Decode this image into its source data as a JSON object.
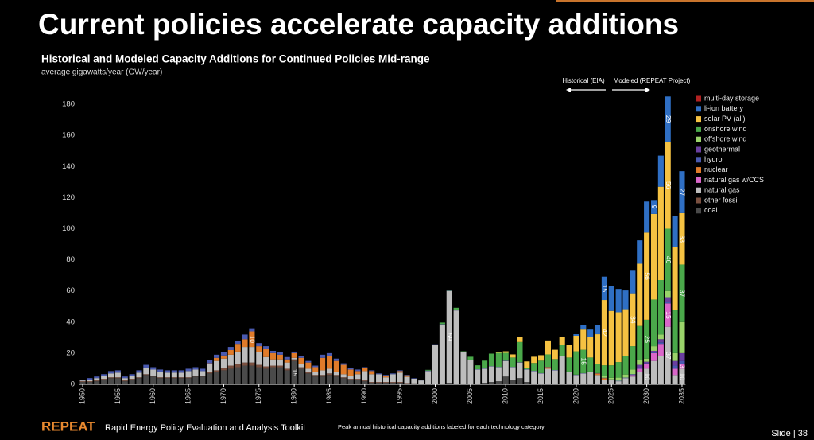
{
  "header": {
    "title": "Current policies accelerate capacity additions"
  },
  "footer": {
    "brand": "REPEAT",
    "tagline": "Rapid Energy Policy Evaluation and Analysis Toolkit",
    "note": "Peak annual historical capacity additions labeled for each technology category",
    "slide": "Slide | 38"
  },
  "chart_data": {
    "type": "bar",
    "stacked": true,
    "title": "Historical and Modeled Capacity Additions for Continued Policies Mid-range",
    "subtitle": "average gigawatts/year (GW/year)",
    "annotations": [
      "Historical (EIA)",
      "Modeled (REPEAT Project)"
    ],
    "xlim": [
      1949.5,
      2035.5
    ],
    "xticks": [
      1950,
      1955,
      1960,
      1965,
      1970,
      1975,
      1980,
      1985,
      1990,
      1995,
      2000,
      2005,
      2010,
      2015,
      2020,
      2025,
      2030,
      2035
    ],
    "ylim": [
      0,
      185
    ],
    "yticks": [
      0,
      20,
      40,
      60,
      80,
      100,
      120,
      140,
      160,
      180
    ],
    "x": [
      1950,
      1951,
      1952,
      1953,
      1954,
      1955,
      1956,
      1957,
      1958,
      1959,
      1960,
      1961,
      1962,
      1963,
      1964,
      1965,
      1966,
      1967,
      1968,
      1969,
      1970,
      1971,
      1972,
      1973,
      1974,
      1975,
      1976,
      1977,
      1978,
      1979,
      1980,
      1981,
      1982,
      1983,
      1984,
      1985,
      1986,
      1987,
      1988,
      1989,
      1990,
      1991,
      1992,
      1993,
      1994,
      1995,
      1996,
      1997,
      1998,
      1999,
      2000,
      2001,
      2002,
      2003,
      2004,
      2005,
      2006,
      2007,
      2008,
      2009,
      2010,
      2011,
      2012,
      2013,
      2014,
      2015,
      2016,
      2017,
      2018,
      2019,
      2020,
      2021,
      2022,
      2023,
      2024,
      2025,
      2026,
      2027,
      2028,
      2029,
      2030,
      2031,
      2032,
      2033,
      2034,
      2035
    ],
    "series": [
      {
        "name": "coal",
        "color": "#4a4a4a",
        "values": [
          1.5,
          1.5,
          2,
          3,
          4,
          4,
          2,
          3,
          4,
          6,
          5,
          4,
          4,
          4,
          4,
          4,
          5,
          5,
          7,
          8,
          9,
          10,
          11,
          12,
          12,
          11,
          10,
          11,
          11,
          9,
          15,
          10,
          7,
          5,
          5,
          6,
          5,
          4,
          3,
          3,
          2,
          1,
          1,
          1,
          1,
          1,
          0.5,
          0.3,
          0.2,
          0.2,
          0.5,
          0.5,
          1,
          0.5,
          0.5,
          0.5,
          0.5,
          1,
          1.5,
          2,
          5,
          3,
          4,
          1.5,
          0.5,
          0,
          0,
          0,
          0,
          0,
          0,
          0,
          0,
          0,
          0,
          0,
          0,
          0,
          0,
          0,
          0,
          0,
          0,
          0,
          0,
          0
        ],
        "value_labels": {
          "30": "15"
        }
      },
      {
        "name": "other fossil",
        "color": "#7a5040",
        "values": [
          0.5,
          0.5,
          0.5,
          0.5,
          0.5,
          0.5,
          0.5,
          0.5,
          0.5,
          0.5,
          0.5,
          0.5,
          0.5,
          0.5,
          0.5,
          0.5,
          0.5,
          0.5,
          1,
          1,
          1.5,
          2,
          2,
          2,
          2,
          1.5,
          1.5,
          1,
          1,
          1,
          1,
          1,
          1,
          1,
          1,
          1,
          1,
          0.5,
          0.5,
          0.5,
          0.5,
          0.5,
          0.5,
          0.5,
          0.5,
          0.5,
          0.3,
          0.3,
          0.3,
          0.3,
          0,
          0,
          0,
          0,
          0,
          0,
          0,
          0,
          0,
          0,
          0,
          0,
          0,
          0,
          0,
          0,
          0,
          0,
          0,
          0,
          0,
          0,
          0,
          0,
          0,
          0,
          0,
          0,
          0,
          0,
          0,
          0,
          0,
          0,
          0,
          0
        ]
      },
      {
        "name": "natural gas",
        "color": "#bdbdbd",
        "values": [
          0.5,
          1,
          1.5,
          2,
          2.5,
          3,
          1.5,
          2,
          3,
          4,
          4,
          3.5,
          3,
          3,
          3,
          4,
          4,
          3,
          5,
          6,
          6,
          7,
          8,
          10,
          10,
          8,
          6,
          4,
          4,
          4,
          1,
          2,
          2,
          2,
          3,
          3,
          2,
          2,
          2,
          3,
          6,
          5,
          5,
          3,
          5,
          6,
          4,
          3,
          2,
          8,
          25,
          38,
          59,
          47,
          20,
          15,
          9,
          9,
          10,
          9,
          10,
          8,
          10,
          8,
          8,
          7,
          10,
          9,
          18,
          8,
          6,
          7,
          8,
          6,
          3,
          3,
          2,
          4,
          5,
          8,
          10,
          15,
          18,
          37,
          6,
          10
        ],
        "value_labels": {
          "52": "59",
          "80": "10",
          "83": "37",
          "85": "10"
        }
      },
      {
        "name": "natural gas w/CCS",
        "color": "#d966c9",
        "values": [
          0,
          0,
          0,
          0,
          0,
          0,
          0,
          0,
          0,
          0,
          0,
          0,
          0,
          0,
          0,
          0,
          0,
          0,
          0,
          0,
          0,
          0,
          0,
          0,
          0,
          0,
          0,
          0,
          0,
          0,
          0,
          0,
          0,
          0,
          0,
          0,
          0,
          0,
          0,
          0,
          0,
          0,
          0,
          0,
          0,
          0,
          0,
          0,
          0,
          0,
          0,
          0,
          0,
          0,
          0,
          0,
          0,
          0,
          0,
          0,
          0,
          0,
          0,
          0,
          0,
          0,
          0,
          0,
          0,
          0,
          0,
          0,
          0,
          0,
          0,
          0,
          0,
          0,
          1,
          2,
          3,
          5,
          8,
          15,
          4,
          3
        ],
        "value_labels": {
          "83": "15",
          "85": "3"
        }
      },
      {
        "name": "nuclear",
        "color": "#e07b2a",
        "values": [
          0,
          0,
          0,
          0,
          0,
          0,
          0,
          0,
          0,
          0,
          0,
          0,
          0,
          0,
          0,
          0,
          0,
          0,
          0.5,
          2,
          2,
          3,
          5,
          5,
          10,
          4,
          5,
          4,
          3,
          2,
          3,
          4,
          4,
          3,
          8,
          8,
          7,
          6,
          4,
          2,
          2,
          2,
          0,
          1,
          0,
          1,
          1,
          0,
          0,
          0,
          0,
          0,
          0,
          0,
          0,
          0,
          0,
          0,
          0,
          0,
          0,
          0,
          0,
          0,
          0,
          0,
          1,
          0,
          0,
          0,
          0,
          0,
          0,
          1,
          1,
          0,
          0,
          0,
          0,
          0,
          0,
          0,
          0,
          0,
          0,
          0
        ],
        "value_labels": {
          "24": "10"
        }
      },
      {
        "name": "hydro",
        "color": "#4a5ab0",
        "values": [
          0.5,
          1,
          1,
          1,
          1.5,
          1.5,
          1,
          1,
          1.5,
          2,
          1.5,
          1.5,
          1.5,
          1.5,
          1.5,
          1.5,
          1.5,
          1.5,
          2,
          2,
          2,
          2,
          2,
          3,
          2,
          2,
          2,
          1.5,
          1.5,
          1.5,
          1,
          1,
          1,
          1,
          2,
          2,
          1.5,
          1,
          1,
          1,
          0.5,
          0.5,
          0.5,
          0.5,
          0.5,
          0.5,
          0.3,
          0.3,
          0.3,
          0.3,
          0.2,
          0.2,
          0.2,
          0.2,
          0.2,
          0.2,
          0.2,
          0.2,
          0.2,
          0.2,
          0.2,
          0.2,
          0.2,
          0.2,
          0.2,
          0.2,
          0.2,
          0.2,
          0.2,
          0.2,
          0.2,
          0.2,
          0.2,
          0.2,
          0.2,
          0.2,
          0.3,
          0.3,
          0.5,
          0.5,
          0.5,
          0.5,
          1,
          1,
          2,
          2
        ]
      },
      {
        "name": "geothermal",
        "color": "#6a3fa0",
        "values": [
          0,
          0,
          0,
          0,
          0,
          0,
          0,
          0,
          0,
          0,
          0,
          0,
          0,
          0,
          0,
          0,
          0,
          0,
          0,
          0,
          0,
          0,
          0,
          0,
          0,
          0,
          0,
          0,
          0,
          0,
          0,
          0,
          0,
          0,
          0,
          0,
          0,
          0,
          0,
          0,
          0,
          0,
          0,
          0,
          0,
          0,
          0,
          0,
          0,
          0,
          0,
          0,
          0,
          0,
          0,
          0,
          0,
          0,
          0,
          0,
          0,
          0,
          0,
          0,
          0,
          0,
          0,
          0,
          0,
          0,
          0,
          0,
          0,
          0,
          0,
          0,
          0,
          0,
          0,
          2,
          1,
          1,
          2,
          3,
          3,
          5
        ]
      },
      {
        "name": "offshore wind",
        "color": "#9ad36a",
        "values": [
          0,
          0,
          0,
          0,
          0,
          0,
          0,
          0,
          0,
          0,
          0,
          0,
          0,
          0,
          0,
          0,
          0,
          0,
          0,
          0,
          0,
          0,
          0,
          0,
          0,
          0,
          0,
          0,
          0,
          0,
          0,
          0,
          0,
          0,
          0,
          0,
          0,
          0,
          0,
          0,
          0,
          0,
          0,
          0,
          0,
          0,
          0,
          0,
          0,
          0,
          0,
          0,
          0,
          0,
          0,
          0,
          0,
          0,
          0,
          0,
          0,
          0,
          0,
          0,
          0,
          0,
          0,
          0,
          0,
          0,
          0,
          0,
          0,
          0,
          1,
          1,
          2,
          2,
          3,
          3,
          2,
          3,
          3,
          4,
          5,
          20
        ]
      },
      {
        "name": "onshore wind",
        "color": "#4aa84a",
        "values": [
          0,
          0,
          0,
          0,
          0,
          0,
          0,
          0,
          0,
          0,
          0,
          0,
          0,
          0,
          0,
          0,
          0,
          0,
          0,
          0,
          0,
          0,
          0,
          0,
          0,
          0,
          0,
          0,
          0,
          0,
          0,
          0,
          0,
          0,
          0,
          0,
          0,
          0,
          0,
          0,
          0,
          0,
          0,
          0,
          0,
          0,
          0,
          0,
          0,
          0.5,
          0,
          1,
          0.5,
          1.5,
          0.5,
          2,
          2.5,
          5,
          8,
          9,
          5,
          6,
          13,
          1,
          5,
          8,
          8,
          7,
          7,
          9,
          15,
          15,
          9,
          6,
          7,
          8,
          10,
          12,
          15,
          22,
          25,
          30,
          35,
          40,
          28,
          37
        ],
        "value_labels": {
          "71": "15",
          "80": "25",
          "83": "40",
          "85": "37"
        }
      },
      {
        "name": "solar PV (all)",
        "color": "#f5c242",
        "values": [
          0,
          0,
          0,
          0,
          0,
          0,
          0,
          0,
          0,
          0,
          0,
          0,
          0,
          0,
          0,
          0,
          0,
          0,
          0,
          0,
          0,
          0,
          0,
          0,
          0,
          0,
          0,
          0,
          0,
          0,
          0,
          0,
          0,
          0,
          0,
          0,
          0,
          0,
          0,
          0,
          0,
          0,
          0,
          0,
          0,
          0,
          0,
          0,
          0,
          0,
          0,
          0,
          0,
          0,
          0,
          0,
          0,
          0,
          0,
          0.3,
          1,
          2,
          3,
          4,
          4,
          3.5,
          9,
          6,
          5,
          8,
          10,
          13,
          13,
          19,
          42,
          35,
          32,
          30,
          34,
          40,
          56,
          55,
          60,
          56,
          40,
          33
        ],
        "value_labels": {
          "74": "42",
          "78": "34",
          "80": "56",
          "83": "56",
          "85": "33"
        }
      },
      {
        "name": "li-ion battery",
        "color": "#2f6fc4",
        "values": [
          0,
          0,
          0,
          0,
          0,
          0,
          0,
          0,
          0,
          0,
          0,
          0,
          0,
          0,
          0,
          0,
          0,
          0,
          0,
          0,
          0,
          0,
          0,
          0,
          0,
          0,
          0,
          0,
          0,
          0,
          0,
          0,
          0,
          0,
          0,
          0,
          0,
          0,
          0,
          0,
          0,
          0,
          0,
          0,
          0,
          0,
          0,
          0,
          0,
          0,
          0,
          0,
          0,
          0,
          0,
          0,
          0,
          0,
          0,
          0,
          0,
          0,
          0,
          0,
          0,
          0,
          0,
          0,
          0,
          0.3,
          1,
          3,
          5,
          6,
          15,
          16,
          15,
          12,
          15,
          15,
          20,
          9,
          20,
          29,
          20,
          27
        ],
        "value_labels": {
          "74": "15",
          "81": "9",
          "83": "29",
          "85": "27"
        }
      },
      {
        "name": "multi-day storage",
        "color": "#b22222",
        "values": [
          0,
          0,
          0,
          0,
          0,
          0,
          0,
          0,
          0,
          0,
          0,
          0,
          0,
          0,
          0,
          0,
          0,
          0,
          0,
          0,
          0,
          0,
          0,
          0,
          0,
          0,
          0,
          0,
          0,
          0,
          0,
          0,
          0,
          0,
          0,
          0,
          0,
          0,
          0,
          0,
          0,
          0,
          0,
          0,
          0,
          0,
          0,
          0,
          0,
          0,
          0,
          0,
          0,
          0,
          0,
          0,
          0,
          0,
          0,
          0,
          0,
          0,
          0,
          0,
          0,
          0,
          0,
          0,
          0,
          0,
          0,
          0,
          0,
          0,
          0,
          0,
          0,
          0,
          0,
          0,
          0,
          0,
          0,
          0,
          0,
          0
        ]
      }
    ]
  }
}
